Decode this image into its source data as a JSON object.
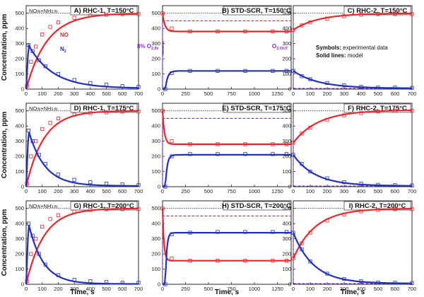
{
  "figure": {
    "ylabel": "Concentration, ppm",
    "xlabel": "Time, s",
    "legend_symbols": "Symbols:",
    "legend_symbols_desc": " experimental data",
    "legend_lines": "Solid lines:",
    "legend_lines_desc": " model",
    "inlet_label": "NO",
    "inlet_sub1": "IN",
    "inlet_plus": "+NH",
    "inlet_sub2": "3,IN",
    "no_label": "NO",
    "n2_label": "N",
    "n2_sub": "2",
    "o2_in_label": "8% O",
    "o2_in_sub": "2,IN",
    "o2_out_label": "O",
    "o2_out_sub": "2,OUT",
    "colors": {
      "no": "#e8282c",
      "n2": "#2330b8",
      "reference": "#111111",
      "o2": "#8a2be2"
    }
  },
  "chart_data": [
    {
      "id": "A",
      "title": "A)  RHC-1, T=150°C",
      "type": "scatter+line",
      "xlim": [
        0,
        700
      ],
      "ylim": [
        0,
        550
      ],
      "series": [
        {
          "name": "NO",
          "model": {
            "kind": "rise",
            "x0": 0,
            "y0": 0,
            "yinf": 500,
            "tau": 130
          },
          "exp": {
            "x": [
              5,
              30,
              60,
              100,
              150,
              200,
              300,
              400,
              500,
              600,
              700
            ],
            "y": [
              20,
              180,
              280,
              360,
              410,
              440,
              470,
              485,
              490,
              495,
              495
            ]
          }
        },
        {
          "name": "N2",
          "model": {
            "kind": "rise-decay",
            "xpeak": 15,
            "ypeak": 290,
            "yinf": 5,
            "tau": 150
          },
          "exp": {
            "x": [
              15,
              40,
              80,
              120,
              200,
              300,
              400,
              500,
              600,
              700
            ],
            "y": [
              290,
              250,
              190,
              150,
              100,
              60,
              40,
              30,
              20,
              15
            ]
          }
        }
      ]
    },
    {
      "id": "B",
      "title": "B)  STD-SCR, T=150°C",
      "type": "scatter+line",
      "xlim": [
        0,
        1400
      ],
      "ylim": [
        0,
        550
      ],
      "series": [
        {
          "name": "NO",
          "model": {
            "kind": "drop",
            "x0": 0,
            "y0": 500,
            "yinf": 380,
            "tau": 25
          },
          "exp": {
            "x": [
              0,
              100,
              300,
              600,
              900,
              1200,
              1350
            ],
            "y": [
              500,
              400,
              380,
              380,
              380,
              380,
              380
            ]
          }
        },
        {
          "name": "N2",
          "model": {
            "kind": "rise",
            "x0": 30,
            "y0": 0,
            "yinf": 120,
            "tau": 25
          },
          "exp": {
            "x": [
              30,
              100,
              300,
              600,
              900,
              1200,
              1350
            ],
            "y": [
              0,
              105,
              120,
              120,
              120,
              120,
              120
            ]
          }
        }
      ]
    },
    {
      "id": "C",
      "title": "C)  RHC-2, T=150°C",
      "type": "scatter+line",
      "xlim": [
        0,
        700
      ],
      "ylim": [
        0,
        550
      ],
      "series": [
        {
          "name": "NO",
          "model": {
            "kind": "rise",
            "x0": 0,
            "y0": 390,
            "yinf": 500,
            "tau": 150
          },
          "exp": {
            "x": [
              0,
              50,
              100,
              200,
              300,
              400,
              500,
              600,
              700
            ],
            "y": [
              390,
              420,
              440,
              465,
              480,
              490,
              495,
              495,
              495
            ]
          }
        },
        {
          "name": "N2",
          "model": {
            "kind": "drop",
            "x0": 0,
            "y0": 120,
            "yinf": 5,
            "tau": 150
          },
          "exp": {
            "x": [
              0,
              50,
              100,
              200,
              300,
              400,
              500,
              600,
              700
            ],
            "y": [
              120,
              85,
              65,
              40,
              25,
              15,
              10,
              10,
              8
            ]
          }
        }
      ]
    },
    {
      "id": "D",
      "title": "D)  RHC-1, T=175°C",
      "type": "scatter+line",
      "xlim": [
        0,
        700
      ],
      "ylim": [
        0,
        550
      ],
      "series": [
        {
          "name": "NO",
          "model": {
            "kind": "rise",
            "x0": 0,
            "y0": 0,
            "yinf": 500,
            "tau": 110
          },
          "exp": {
            "x": [
              5,
              30,
              60,
              100,
              150,
              200,
              300,
              400,
              500,
              600,
              700
            ],
            "y": [
              20,
              200,
              300,
              380,
              420,
              450,
              475,
              485,
              490,
              495,
              495
            ]
          }
        },
        {
          "name": "N2",
          "model": {
            "kind": "rise-decay",
            "xpeak": 15,
            "ypeak": 370,
            "yinf": 5,
            "tau": 100
          },
          "exp": {
            "x": [
              15,
              40,
              80,
              120,
              200,
              300,
              400,
              500,
              600,
              700
            ],
            "y": [
              370,
              300,
              210,
              150,
              80,
              45,
              30,
              20,
              15,
              10
            ]
          }
        }
      ]
    },
    {
      "id": "E",
      "title": "E)  STD-SCR, T=175°C",
      "type": "scatter+line",
      "xlim": [
        0,
        1400
      ],
      "ylim": [
        0,
        550
      ],
      "series": [
        {
          "name": "NO",
          "model": {
            "kind": "drop",
            "x0": 0,
            "y0": 500,
            "yinf": 280,
            "tau": 20
          },
          "exp": {
            "x": [
              0,
              100,
              300,
              600,
              900,
              1200,
              1350
            ],
            "y": [
              500,
              300,
              280,
              280,
              280,
              280,
              280
            ]
          }
        },
        {
          "name": "N2",
          "model": {
            "kind": "rise",
            "x0": 30,
            "y0": 0,
            "yinf": 210,
            "tau": 20
          },
          "exp": {
            "x": [
              30,
              100,
              300,
              600,
              900,
              1200,
              1350
            ],
            "y": [
              0,
              200,
              215,
              215,
              215,
              215,
              215
            ]
          }
        }
      ]
    },
    {
      "id": "F",
      "title": "F)  RHC-2, T=175°C",
      "type": "scatter+line",
      "xlim": [
        0,
        700
      ],
      "ylim": [
        0,
        550
      ],
      "series": [
        {
          "name": "NO",
          "model": {
            "kind": "rise",
            "x0": 0,
            "y0": 290,
            "yinf": 505,
            "tau": 150
          },
          "exp": {
            "x": [
              0,
              50,
              100,
              200,
              300,
              400,
              500,
              600,
              700
            ],
            "y": [
              290,
              350,
              390,
              440,
              470,
              485,
              495,
              500,
              500
            ]
          }
        },
        {
          "name": "N2",
          "model": {
            "kind": "drop",
            "x0": 0,
            "y0": 210,
            "yinf": 5,
            "tau": 130
          },
          "exp": {
            "x": [
              0,
              50,
              100,
              200,
              300,
              400,
              500,
              600,
              700
            ],
            "y": [
              210,
              150,
              100,
              55,
              30,
              20,
              12,
              10,
              8
            ]
          }
        }
      ]
    },
    {
      "id": "G",
      "title": "G)  RHC-1, T=200°C",
      "type": "scatter+line",
      "xlim": [
        0,
        700
      ],
      "ylim": [
        0,
        550
      ],
      "series": [
        {
          "name": "NO",
          "model": {
            "kind": "rise",
            "x0": 0,
            "y0": 0,
            "yinf": 500,
            "tau": 110
          },
          "exp": {
            "x": [
              5,
              30,
              60,
              100,
              150,
              200,
              300,
              400,
              500,
              600,
              700
            ],
            "y": [
              20,
              200,
              300,
              380,
              430,
              455,
              480,
              490,
              495,
              495,
              495
            ]
          }
        },
        {
          "name": "N2",
          "model": {
            "kind": "rise-decay",
            "xpeak": 15,
            "ypeak": 400,
            "yinf": 2,
            "tau": 90
          },
          "exp": {
            "x": [
              15,
              40,
              80,
              120,
              200,
              300,
              400,
              500,
              600,
              700
            ],
            "y": [
              400,
              320,
              200,
              130,
              60,
              30,
              20,
              15,
              10,
              10
            ]
          }
        }
      ]
    },
    {
      "id": "H",
      "title": "H)  STD-SCR, T=200°C",
      "type": "scatter+line",
      "xlim": [
        0,
        1400
      ],
      "ylim": [
        0,
        550
      ],
      "series": [
        {
          "name": "NO",
          "model": {
            "kind": "drop",
            "x0": 0,
            "y0": 500,
            "yinf": 155,
            "tau": 15
          },
          "exp": {
            "x": [
              0,
              100,
              300,
              600,
              900,
              1200,
              1350
            ],
            "y": [
              500,
              170,
              155,
              155,
              155,
              155,
              155
            ]
          }
        },
        {
          "name": "N2",
          "model": {
            "kind": "rise",
            "x0": 30,
            "y0": 0,
            "yinf": 340,
            "tau": 15
          },
          "exp": {
            "x": [
              30,
              100,
              300,
              600,
              900,
              1200,
              1350
            ],
            "y": [
              0,
              330,
              340,
              345,
              345,
              345,
              345
            ]
          }
        }
      ]
    },
    {
      "id": "I",
      "title": "I)  RHC-2, T=200°C",
      "type": "scatter+line",
      "xlim": [
        0,
        700
      ],
      "ylim": [
        0,
        550
      ],
      "series": [
        {
          "name": "NO",
          "model": {
            "kind": "rise",
            "x0": 0,
            "y0": 170,
            "yinf": 500,
            "tau": 130
          },
          "exp": {
            "x": [
              0,
              50,
              100,
              200,
              300,
              400,
              500,
              600,
              700
            ],
            "y": [
              170,
              270,
              340,
              420,
              460,
              480,
              490,
              495,
              495
            ]
          }
        },
        {
          "name": "N2",
          "model": {
            "kind": "drop",
            "x0": 0,
            "y0": 340,
            "yinf": 5,
            "tau": 120
          },
          "exp": {
            "x": [
              0,
              50,
              100,
              200,
              300,
              400,
              500,
              600,
              700
            ],
            "y": [
              340,
              230,
              150,
              70,
              35,
              20,
              12,
              10,
              8
            ]
          }
        }
      ]
    }
  ]
}
